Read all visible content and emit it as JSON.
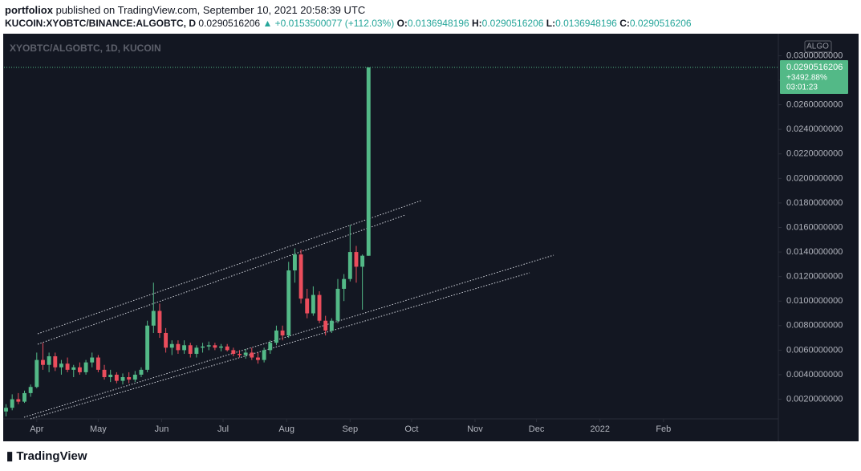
{
  "header": {
    "author": "portfoliox",
    "published": "published on TradingView.com, September 10, 2021 20:58:39 UTC",
    "symbol": "KUCOIN:XYOBTC/BINANCE:ALGOBTC, D",
    "change": "▲ +0.0153500077 (+112.03%)",
    "open_label": "O:",
    "high_label": "H:",
    "low_label": "L:",
    "close_label": "C:"
  },
  "footer": {
    "logo": "TradingView"
  },
  "chart_data": {
    "type": "candlestick",
    "title": "XYOBTC/ALGOBTC, 1D, KUCOIN",
    "badge": "ALGO",
    "up_color": "#53b987",
    "down_color": "#eb4d5c",
    "grid": false,
    "last_change": "+3492.88%",
    "countdown": "03:01:23",
    "open": [
      0.001,
      0.0013,
      0.002,
      0.0018,
      0.0025,
      0.003,
      0.0052,
      0.0048,
      0.0055,
      0.0046,
      0.0049,
      0.0044,
      0.0046,
      0.0042,
      0.005,
      0.0054,
      0.0044,
      0.0038,
      0.004,
      0.0035,
      0.0038,
      0.0036,
      0.004,
      0.0044,
      0.008,
      0.0092,
      0.0074,
      0.0062,
      0.0065,
      0.006,
      0.0064,
      0.0057,
      0.0062,
      0.0063,
      0.0064,
      0.0062,
      0.0063,
      0.006,
      0.0057,
      0.0056,
      0.0058,
      0.0054,
      0.0052,
      0.006,
      0.0066,
      0.0076,
      0.0072,
      0.0125,
      0.0138,
      0.0102,
      0.009,
      0.0105,
      0.0084,
      0.0076,
      0.0084,
      0.011,
      0.0118,
      0.014,
      0.0128,
      0.0136948196
    ],
    "high": [
      0.0016,
      0.0024,
      0.0025,
      0.0027,
      0.0032,
      0.0058,
      0.0066,
      0.0058,
      0.0058,
      0.0052,
      0.0054,
      0.0048,
      0.005,
      0.0052,
      0.0058,
      0.0056,
      0.0048,
      0.0044,
      0.0042,
      0.0041,
      0.0042,
      0.0043,
      0.0046,
      0.0084,
      0.0115,
      0.0098,
      0.0078,
      0.0068,
      0.0068,
      0.0068,
      0.0066,
      0.0064,
      0.0066,
      0.0067,
      0.0066,
      0.0065,
      0.0065,
      0.0062,
      0.006,
      0.0061,
      0.0062,
      0.0058,
      0.0062,
      0.0068,
      0.008,
      0.008,
      0.0132,
      0.0143,
      0.0142,
      0.011,
      0.0112,
      0.0108,
      0.0088,
      0.0086,
      0.0118,
      0.0122,
      0.0162,
      0.0145,
      0.0138,
      0.0290516206
    ],
    "low": [
      0.0006,
      0.0011,
      0.0016,
      0.0017,
      0.0022,
      0.0029,
      0.0044,
      0.0042,
      0.0043,
      0.004,
      0.0042,
      0.0038,
      0.004,
      0.004,
      0.0046,
      0.0042,
      0.0036,
      0.0034,
      0.0033,
      0.0032,
      0.0033,
      0.0034,
      0.0038,
      0.0042,
      0.0074,
      0.007,
      0.0058,
      0.0056,
      0.0057,
      0.0057,
      0.0054,
      0.0054,
      0.0058,
      0.006,
      0.006,
      0.0059,
      0.0059,
      0.0055,
      0.0054,
      0.0053,
      0.0052,
      0.0049,
      0.005,
      0.0057,
      0.0064,
      0.0068,
      0.007,
      0.0115,
      0.0098,
      0.0086,
      0.0088,
      0.0082,
      0.0072,
      0.0074,
      0.0082,
      0.01,
      0.0116,
      0.0115,
      0.0093,
      0.0136948196
    ],
    "close": [
      0.0013,
      0.002,
      0.0018,
      0.0025,
      0.003,
      0.0052,
      0.0048,
      0.0055,
      0.0046,
      0.0049,
      0.0044,
      0.0046,
      0.0042,
      0.005,
      0.0054,
      0.0044,
      0.0038,
      0.004,
      0.0035,
      0.0038,
      0.0036,
      0.004,
      0.0044,
      0.008,
      0.0092,
      0.0074,
      0.0062,
      0.0065,
      0.006,
      0.0064,
      0.0057,
      0.0062,
      0.0063,
      0.0064,
      0.0062,
      0.0063,
      0.006,
      0.0057,
      0.0056,
      0.0058,
      0.0054,
      0.0052,
      0.006,
      0.0066,
      0.0076,
      0.0072,
      0.0125,
      0.0138,
      0.0102,
      0.009,
      0.0105,
      0.0084,
      0.0076,
      0.0084,
      0.011,
      0.0118,
      0.014,
      0.0128,
      0.0137,
      0.0290516206
    ],
    "xlim": [
      -0.33,
      125.7
    ],
    "xticks": [
      {
        "value": 5,
        "label": "Apr"
      },
      {
        "value": 15,
        "label": "May"
      },
      {
        "value": 25.33,
        "label": "Jun"
      },
      {
        "value": 35.33,
        "label": "Jul"
      },
      {
        "value": 45.67,
        "label": "Aug"
      },
      {
        "value": 56,
        "label": "Sep"
      },
      {
        "value": 66,
        "label": "Oct"
      },
      {
        "value": 76.33,
        "label": "Nov"
      },
      {
        "value": 86.33,
        "label": "Dec"
      },
      {
        "value": 96.67,
        "label": "2022"
      },
      {
        "value": 107,
        "label": "Feb"
      }
    ],
    "ylim": [
      0.0004,
      0.0316
    ],
    "yticks": [
      {
        "value": 0.002,
        "label": "0.0020000000"
      },
      {
        "value": 0.004,
        "label": "0.0040000000"
      },
      {
        "value": 0.006,
        "label": "0.0060000000"
      },
      {
        "value": 0.008,
        "label": "0.0080000000"
      },
      {
        "value": 0.01,
        "label": "0.0100000000"
      },
      {
        "value": 0.012,
        "label": "0.0120000000"
      },
      {
        "value": 0.014,
        "label": "0.0140000000"
      },
      {
        "value": 0.016,
        "label": "0.0160000000"
      },
      {
        "value": 0.018,
        "label": "0.0180000000"
      },
      {
        "value": 0.02,
        "label": "0.0200000000"
      },
      {
        "value": 0.022,
        "label": "0.0220000000"
      },
      {
        "value": 0.024,
        "label": "0.0240000000"
      },
      {
        "value": 0.026,
        "label": "0.0260000000"
      },
      {
        "value": 0.028,
        "label": "0.0280000000"
      },
      {
        "value": 0.03,
        "label": "0.0300000000"
      }
    ]
  }
}
